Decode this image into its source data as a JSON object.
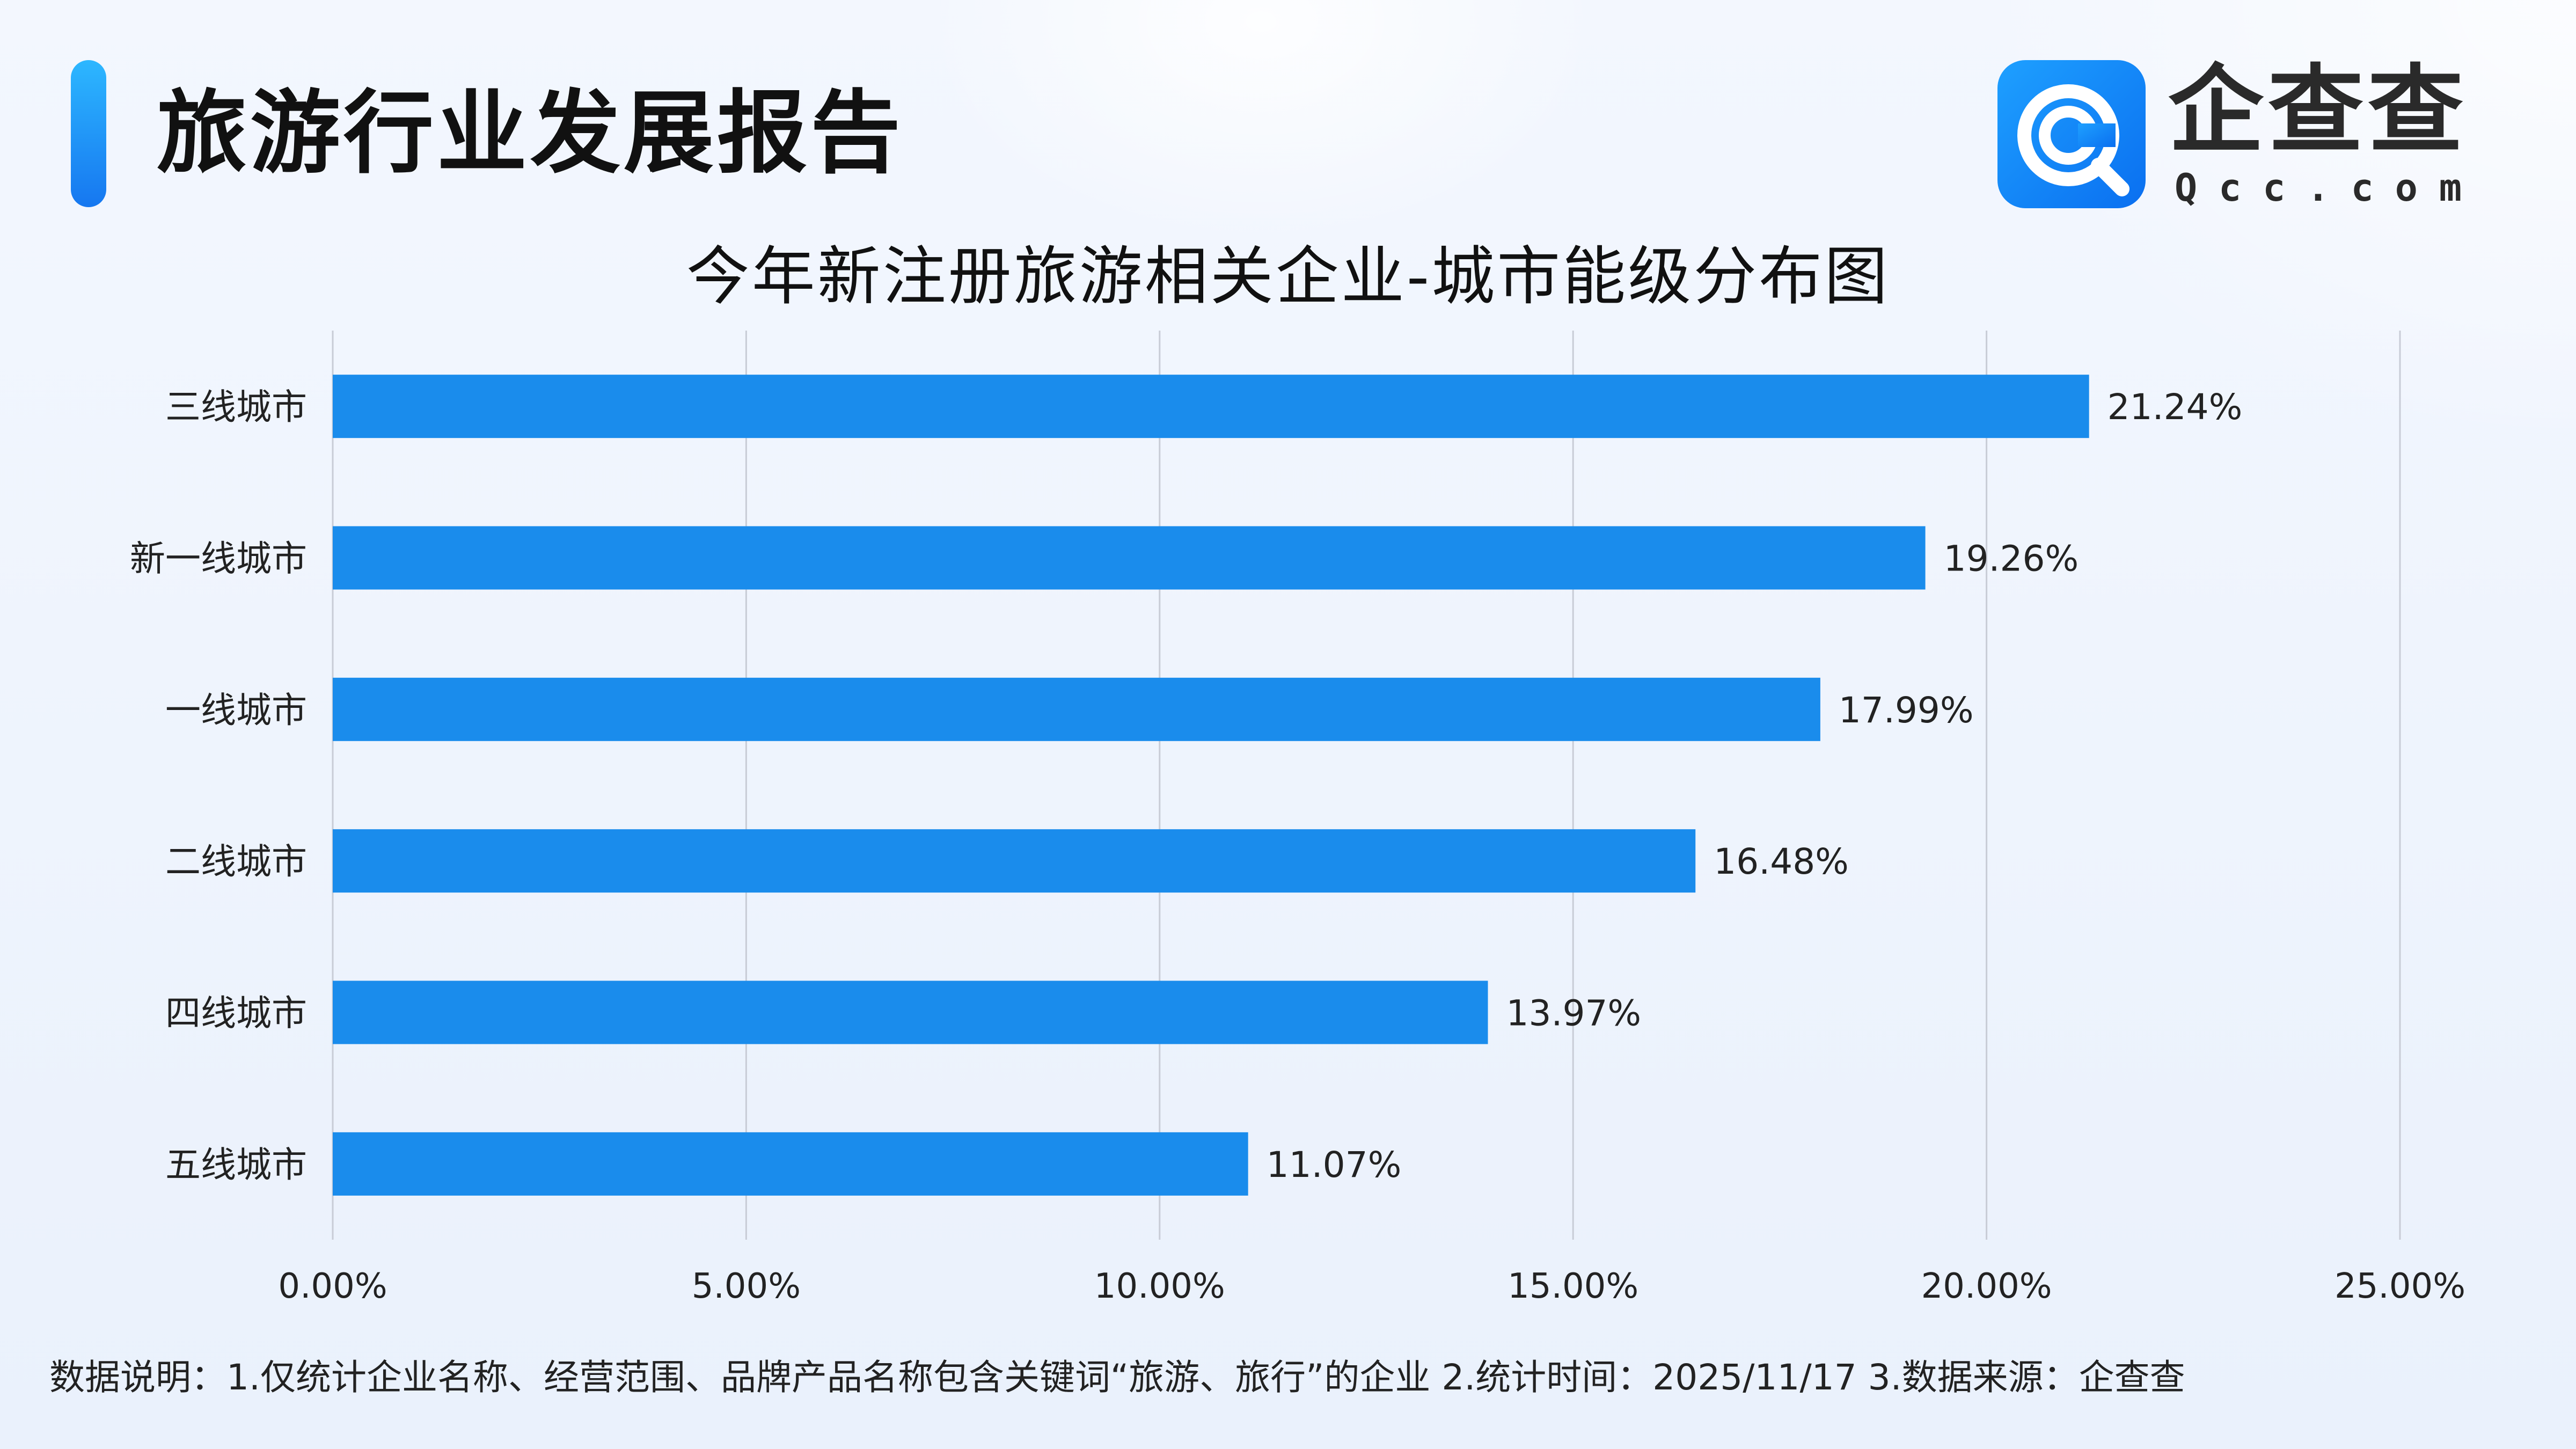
{
  "header": {
    "title": "旅游行业发展报告"
  },
  "logo": {
    "cn": "企查查",
    "en": "Qcc.com"
  },
  "colors": {
    "bar": "#1a8cec",
    "grid": "#c8ccd6",
    "text": "#222222"
  },
  "chart_data": {
    "type": "bar",
    "orientation": "horizontal",
    "title": "今年新注册旅游相关企业-城市能级分布图",
    "xlabel": "",
    "ylabel": "",
    "categories": [
      "三线城市",
      "新一线城市",
      "一线城市",
      "二线城市",
      "四线城市",
      "五线城市"
    ],
    "values": [
      21.24,
      19.26,
      17.99,
      16.48,
      13.97,
      11.07
    ],
    "value_labels": [
      "21.24%",
      "19.26%",
      "17.99%",
      "16.48%",
      "13.97%",
      "11.07%"
    ],
    "xlim": [
      0,
      25
    ],
    "xticks": [
      0,
      5,
      10,
      15,
      20,
      25
    ],
    "xtick_labels": [
      "0.00%",
      "5.00%",
      "10.00%",
      "15.00%",
      "20.00%",
      "25.00%"
    ],
    "grid": "vertical"
  },
  "footnote": "数据说明：1.仅统计企业名称、经营范围、品牌产品名称包含关键词“旅游、旅行”的企业   2.统计时间：2025/11/17    3.数据来源：企查查"
}
